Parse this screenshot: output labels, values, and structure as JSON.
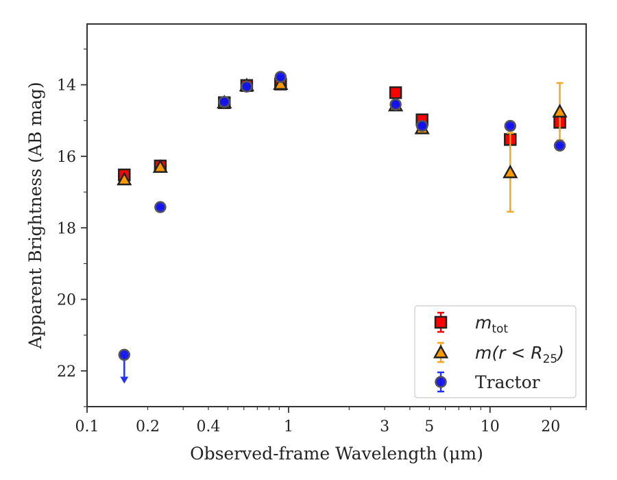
{
  "chart_data": {
    "type": "scatter",
    "title": "",
    "xlabel": "Observed-frame Wavelength (μm)",
    "ylabel": "Apparent Brightness (AB mag)",
    "xscale": "log",
    "xlim": [
      0.1,
      30
    ],
    "ylim": [
      23,
      12.3
    ],
    "y_inverted": true,
    "grid": false,
    "legend_position": "lower-right",
    "x_ticks": [
      {
        "value": 0.1,
        "label": "0.1"
      },
      {
        "value": 0.2,
        "label": "0.2"
      },
      {
        "value": 0.4,
        "label": "0.4"
      },
      {
        "value": 1,
        "label": "1"
      },
      {
        "value": 3,
        "label": "3"
      },
      {
        "value": 5,
        "label": "5"
      },
      {
        "value": 10,
        "label": "10"
      },
      {
        "value": 20,
        "label": "20"
      }
    ],
    "y_ticks": [
      {
        "value": 14,
        "label": "14"
      },
      {
        "value": 16,
        "label": "16"
      },
      {
        "value": 18,
        "label": "18"
      },
      {
        "value": 20,
        "label": "20"
      },
      {
        "value": 22,
        "label": "22"
      }
    ],
    "series": [
      {
        "name": "m_tot",
        "legend_label": "m",
        "legend_sub": "tot",
        "marker": "square",
        "color": "#ff0000",
        "edge": "#222222",
        "error_color": "#ee0000",
        "points": [
          {
            "x": 0.153,
            "y": 16.52,
            "err": 0.1
          },
          {
            "x": 0.231,
            "y": 16.27,
            "err": 0.1
          },
          {
            "x": 0.48,
            "y": 14.5,
            "err": 0.05
          },
          {
            "x": 0.62,
            "y": 14.02,
            "err": 0.05
          },
          {
            "x": 0.913,
            "y": 13.98,
            "err": 0.05
          },
          {
            "x": 3.4,
            "y": 14.22,
            "err": 0.05
          },
          {
            "x": 4.6,
            "y": 14.98,
            "err": 0.05
          },
          {
            "x": 12.6,
            "y": 15.53,
            "err": 0.05
          },
          {
            "x": 22.2,
            "y": 15.05,
            "err": 0.05
          }
        ]
      },
      {
        "name": "m(r < R25)",
        "legend_label": "m(r < R",
        "legend_sub": "25",
        "marker": "triangle",
        "color": "#ff9900",
        "edge": "#222222",
        "error_color": "#f5a623",
        "points": [
          {
            "x": 0.153,
            "y": 16.65,
            "err": 0.05
          },
          {
            "x": 0.231,
            "y": 16.3,
            "err": 0.05
          },
          {
            "x": 0.48,
            "y": 14.5,
            "err": 0.05
          },
          {
            "x": 0.62,
            "y": 14.02,
            "err": 0.05
          },
          {
            "x": 0.913,
            "y": 13.98,
            "err": 0.05
          },
          {
            "x": 3.4,
            "y": 14.58,
            "err": 0.05
          },
          {
            "x": 4.6,
            "y": 15.22,
            "err": 0.05
          },
          {
            "x": 12.6,
            "y": 16.45,
            "err": 1.1
          },
          {
            "x": 22.2,
            "y": 14.75,
            "err": 0.8
          }
        ]
      },
      {
        "name": "Tractor",
        "legend_label": "Tractor",
        "marker": "circle",
        "color": "#1111ee",
        "edge": "#555555",
        "error_color": "#2233ee",
        "points": [
          {
            "x": 0.153,
            "y": 21.55,
            "err": 0,
            "upper_limit": true
          },
          {
            "x": 0.231,
            "y": 17.42,
            "err": 0.03
          },
          {
            "x": 0.48,
            "y": 14.48,
            "err": 0.03
          },
          {
            "x": 0.62,
            "y": 14.05,
            "err": 0.03
          },
          {
            "x": 0.913,
            "y": 13.78,
            "err": 0.03
          },
          {
            "x": 3.4,
            "y": 14.55,
            "err": 0.03
          },
          {
            "x": 4.6,
            "y": 15.15,
            "err": 0.03
          },
          {
            "x": 12.6,
            "y": 15.15,
            "err": 0.03
          },
          {
            "x": 22.2,
            "y": 15.7,
            "err": 0.03
          }
        ]
      }
    ]
  }
}
